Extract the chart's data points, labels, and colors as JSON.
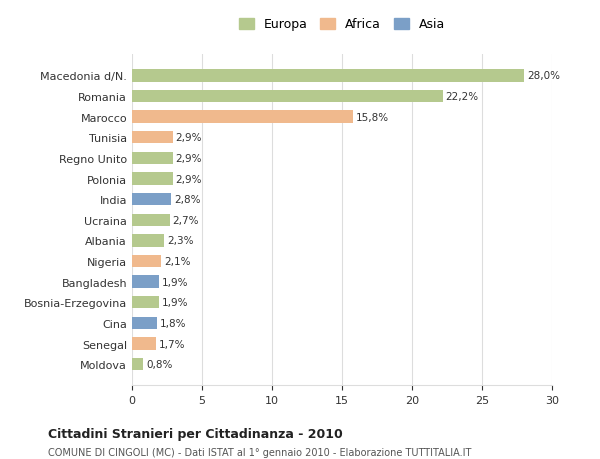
{
  "categories": [
    "Macedonia d/N.",
    "Romania",
    "Marocco",
    "Tunisia",
    "Regno Unito",
    "Polonia",
    "India",
    "Ucraina",
    "Albania",
    "Nigeria",
    "Bangladesh",
    "Bosnia-Erzegovina",
    "Cina",
    "Senegal",
    "Moldova"
  ],
  "values": [
    28.0,
    22.2,
    15.8,
    2.9,
    2.9,
    2.9,
    2.8,
    2.7,
    2.3,
    2.1,
    1.9,
    1.9,
    1.8,
    1.7,
    0.8
  ],
  "labels": [
    "28,0%",
    "22,2%",
    "15,8%",
    "2,9%",
    "2,9%",
    "2,9%",
    "2,8%",
    "2,7%",
    "2,3%",
    "2,1%",
    "1,9%",
    "1,9%",
    "1,8%",
    "1,7%",
    "0,8%"
  ],
  "colors": [
    "#b5c98e",
    "#b5c98e",
    "#f0b98d",
    "#f0b98d",
    "#b5c98e",
    "#b5c98e",
    "#7b9fc7",
    "#b5c98e",
    "#b5c98e",
    "#f0b98d",
    "#7b9fc7",
    "#b5c98e",
    "#7b9fc7",
    "#f0b98d",
    "#b5c98e"
  ],
  "legend_labels": [
    "Europa",
    "Africa",
    "Asia"
  ],
  "legend_colors": [
    "#b5c98e",
    "#f0b98d",
    "#7b9fc7"
  ],
  "title": "Cittadini Stranieri per Cittadinanza - 2010",
  "subtitle": "COMUNE DI CINGOLI (MC) - Dati ISTAT al 1° gennaio 2010 - Elaborazione TUTTITALIA.IT",
  "xlim": [
    0,
    30
  ],
  "xticks": [
    0,
    5,
    10,
    15,
    20,
    25,
    30
  ],
  "background_color": "#ffffff",
  "grid_color": "#dddddd",
  "bar_height": 0.6
}
